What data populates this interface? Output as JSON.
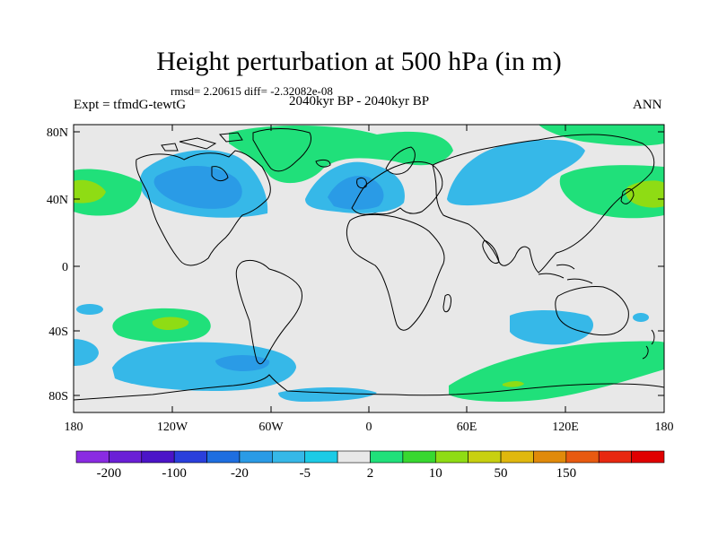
{
  "title": "Height perturbation at 500 hPa (in m)",
  "stats": "rmsd= 2.20615 diff= -2.32082e-08",
  "experiment": "Expt = tfmdG-tewtG",
  "period": "2040kyr BP - 2040kyr BP",
  "season": "ANN",
  "lat_ticks": [
    "80N",
    "40N",
    "0",
    "40S",
    "80S"
  ],
  "lon_ticks": [
    "180",
    "120W",
    "60W",
    "0",
    "60E",
    "120E",
    "180"
  ],
  "colorbar": {
    "colors": [
      "#8a2be2",
      "#6a1fd6",
      "#4b14c8",
      "#2a3fdc",
      "#1e6ee0",
      "#2a9be6",
      "#36b8e8",
      "#1ccbe6",
      "#e8e8e8",
      "#20e07a",
      "#38d830",
      "#8fdc14",
      "#c8d010",
      "#e0b80e",
      "#e08a0a",
      "#e85a10",
      "#e82810",
      "#e00000"
    ],
    "labels": [
      "-200",
      "-100",
      "-20",
      "-5",
      "2",
      "10",
      "50",
      "150"
    ]
  },
  "palette": {
    "background": "#e8e8e8",
    "blue_light": "#36b8e8",
    "blue_mid": "#2a9be6",
    "green": "#20e07a",
    "green_yellow": "#8fdc14"
  }
}
